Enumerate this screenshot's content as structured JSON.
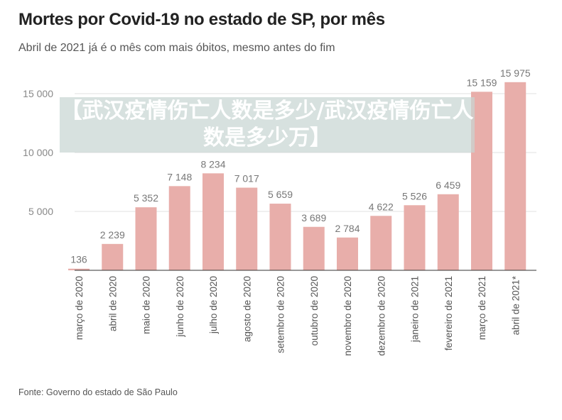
{
  "chart_data": {
    "type": "bar",
    "title": "Mortes por Covid-19 no estado de SP, por mês",
    "subtitle": "Abril de 2021 já é o mês com mais óbitos, mesmo antes do fim",
    "source": "Fonte: Governo do estado de São Paulo",
    "categories": [
      "março de 2020",
      "abril de 2020",
      "maio de 2020",
      "junho de 2020",
      "julho de 2020",
      "agosto de 2020",
      "setembro de 2020",
      "outubro de 2020",
      "novembro de 2020",
      "dezembro de 2020",
      "janeiro de 2021",
      "fevereiro de 2021",
      "março de 2021",
      "abril de 2021*"
    ],
    "values": [
      136,
      2239,
      5352,
      7148,
      8234,
      7017,
      5659,
      3689,
      2784,
      4622,
      5526,
      6459,
      15159,
      15975
    ],
    "data_labels": [
      "136",
      "2 239",
      "5 352",
      "7 148",
      "8 234",
      "7 017",
      "5 659",
      "3 689",
      "2 784",
      "4 622",
      "5 526",
      "6 459",
      "15 159",
      "15 975"
    ],
    "yticks": [
      {
        "value": 5000,
        "label": "5 000"
      },
      {
        "value": 10000,
        "label": "10 000"
      },
      {
        "value": 15000,
        "label": "15 000"
      }
    ],
    "ylim": [
      0,
      16500
    ],
    "grid": true,
    "bar_color": "#e8aeaa"
  },
  "overlay_banner": "【武汉疫情伤亡人数是多少/武汉疫情伤亡人数是多少万】"
}
